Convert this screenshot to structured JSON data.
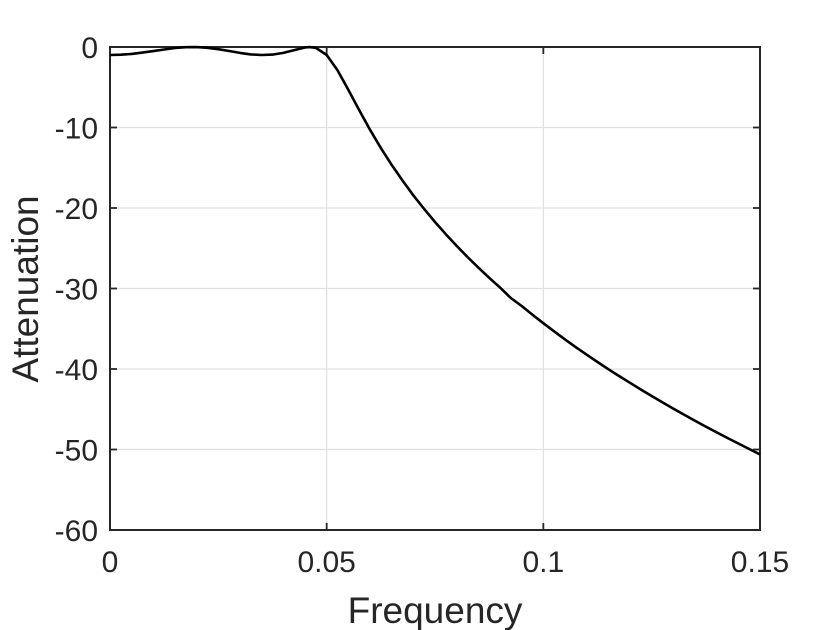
{
  "figure": {
    "background": "#ffffff"
  },
  "chart_data": {
    "type": "line",
    "title": "",
    "xlabel": "Frequency",
    "ylabel": "Attenuation",
    "xlim": [
      0,
      0.15
    ],
    "ylim": [
      -60,
      0
    ],
    "xticks": [
      0,
      0.05,
      0.1,
      0.15
    ],
    "xtick_labels": [
      "0",
      "0.05",
      "0.1",
      "0.15"
    ],
    "yticks": [
      0,
      -10,
      -20,
      -30,
      -40,
      -50,
      -60
    ],
    "ytick_labels": [
      "0",
      "-10",
      "-20",
      "-30",
      "-40",
      "-50",
      "-60"
    ],
    "grid": true,
    "legend": false,
    "axis_color": "#262626",
    "grid_color": "#e0e0e0",
    "tick_label_color": "#262626",
    "label_color": "#262626",
    "series": [
      {
        "name": "attenuation-response",
        "color": "#000000",
        "line_width": 2.6,
        "x": [
          0,
          0.0025,
          0.005,
          0.0075,
          0.01,
          0.0125,
          0.015,
          0.0175,
          0.02,
          0.0225,
          0.025,
          0.0275,
          0.03,
          0.0325,
          0.035,
          0.0375,
          0.04,
          0.0425,
          0.045,
          0.046,
          0.0475,
          0.05,
          0.0525,
          0.055,
          0.0575,
          0.06,
          0.0625,
          0.065,
          0.0675,
          0.07,
          0.0725,
          0.075,
          0.0775,
          0.08,
          0.0825,
          0.085,
          0.0875,
          0.09,
          0.0925,
          0.095,
          0.0975,
          0.1,
          0.1025,
          0.105,
          0.1075,
          0.11,
          0.1125,
          0.115,
          0.1175,
          0.12,
          0.1225,
          0.125,
          0.1275,
          0.13,
          0.1325,
          0.135,
          0.1375,
          0.14,
          0.1425,
          0.145,
          0.1475,
          0.15
        ],
        "y": [
          -1.0,
          -0.96,
          -0.86,
          -0.7,
          -0.51,
          -0.31,
          -0.13,
          -0.02,
          -0.01,
          -0.1,
          -0.27,
          -0.5,
          -0.73,
          -0.92,
          -1.0,
          -0.94,
          -0.73,
          -0.39,
          -0.06,
          -0.01,
          -0.1,
          -1.0,
          -2.88,
          -5.3,
          -7.84,
          -10.27,
          -12.53,
          -14.64,
          -16.59,
          -18.42,
          -20.13,
          -21.74,
          -23.26,
          -24.71,
          -26.09,
          -27.4,
          -28.67,
          -29.88,
          -31.18,
          -32.17,
          -33.26,
          -34.31,
          -35.33,
          -36.32,
          -37.29,
          -38.22,
          -39.13,
          -40.02,
          -40.88,
          -41.72,
          -42.55,
          -43.36,
          -44.15,
          -44.92,
          -45.68,
          -46.42,
          -47.15,
          -47.87,
          -48.57,
          -49.26,
          -49.94,
          -50.61
        ]
      }
    ]
  }
}
